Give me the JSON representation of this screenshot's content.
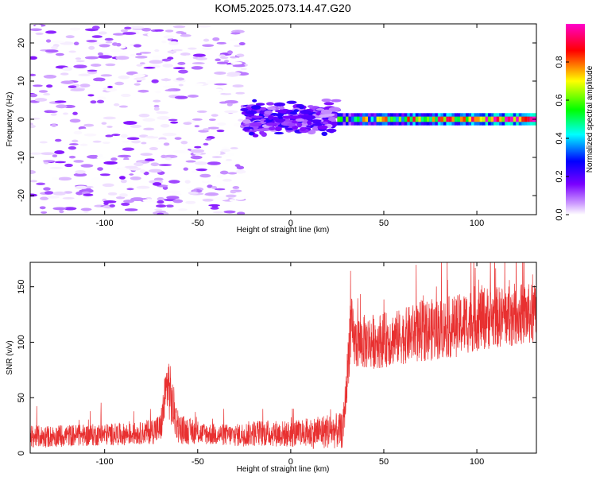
{
  "figure": {
    "title": "KOM5.2025.073.14.47.G20"
  },
  "chart_data": [
    {
      "type": "heatmap",
      "name": "spectrogram",
      "xlabel": "Height of straight line (km)",
      "ylabel": "Frequency (Hz)",
      "xlim": [
        -140,
        132
      ],
      "ylim": [
        -25,
        25
      ],
      "xticks": [
        -100,
        -50,
        0,
        50,
        100
      ],
      "yticks": [
        -20,
        -10,
        0,
        10,
        20
      ],
      "colorbar": {
        "label": "Normalized spectral amplitude",
        "range": [
          0,
          1
        ],
        "ticks": [
          0.0,
          0.2,
          0.4,
          0.6,
          0.8
        ],
        "colormap": [
          "#ffffff",
          "#cc99ff",
          "#7a00ff",
          "#0000ff",
          "#00ffff",
          "#00ff00",
          "#ffff00",
          "#ff0000",
          "#ff00cc"
        ]
      },
      "regions": [
        {
          "description": "noise",
          "x_range": [
            -140,
            -25
          ],
          "freq_range": [
            -25,
            25
          ],
          "amplitude_range": [
            0.0,
            0.15
          ]
        },
        {
          "description": "transition",
          "x_range": [
            -25,
            25
          ],
          "freq_range": [
            -6,
            6
          ],
          "amplitude_range": [
            0.05,
            0.25
          ]
        },
        {
          "description": "signal",
          "x_range": [
            25,
            132
          ],
          "freq_range": [
            -1,
            1
          ],
          "amplitude_range": [
            0.2,
            1.0
          ]
        }
      ]
    },
    {
      "type": "line",
      "name": "snr",
      "xlabel": "Height of straight line (km)",
      "ylabel": "SNR (v/v)",
      "xlim": [
        -140,
        132
      ],
      "ylim": [
        0,
        172
      ],
      "xticks": [
        -100,
        -50,
        0,
        50,
        100
      ],
      "yticks": [
        0,
        50,
        100,
        150
      ],
      "color": "#e83030",
      "series": [
        {
          "name": "SNR",
          "x": [
            -140,
            -130,
            -120,
            -110,
            -100,
            -90,
            -80,
            -70,
            -66,
            -64,
            -60,
            -50,
            -40,
            -30,
            -20,
            -10,
            0,
            10,
            20,
            28,
            30,
            32,
            34,
            40,
            50,
            60,
            70,
            80,
            90,
            100,
            110,
            120,
            132
          ],
          "y": [
            15,
            15,
            16,
            16,
            17,
            17,
            18,
            22,
            65,
            45,
            22,
            18,
            17,
            16,
            18,
            18,
            17,
            18,
            20,
            20,
            60,
            115,
            100,
            100,
            102,
            105,
            110,
            112,
            115,
            122,
            122,
            125,
            125
          ],
          "spread": [
            10,
            10,
            10,
            10,
            10,
            10,
            10,
            14,
            30,
            25,
            14,
            10,
            10,
            10,
            12,
            12,
            12,
            14,
            16,
            16,
            20,
            35,
            25,
            25,
            25,
            25,
            28,
            28,
            28,
            30,
            28,
            28,
            28
          ]
        }
      ]
    }
  ]
}
